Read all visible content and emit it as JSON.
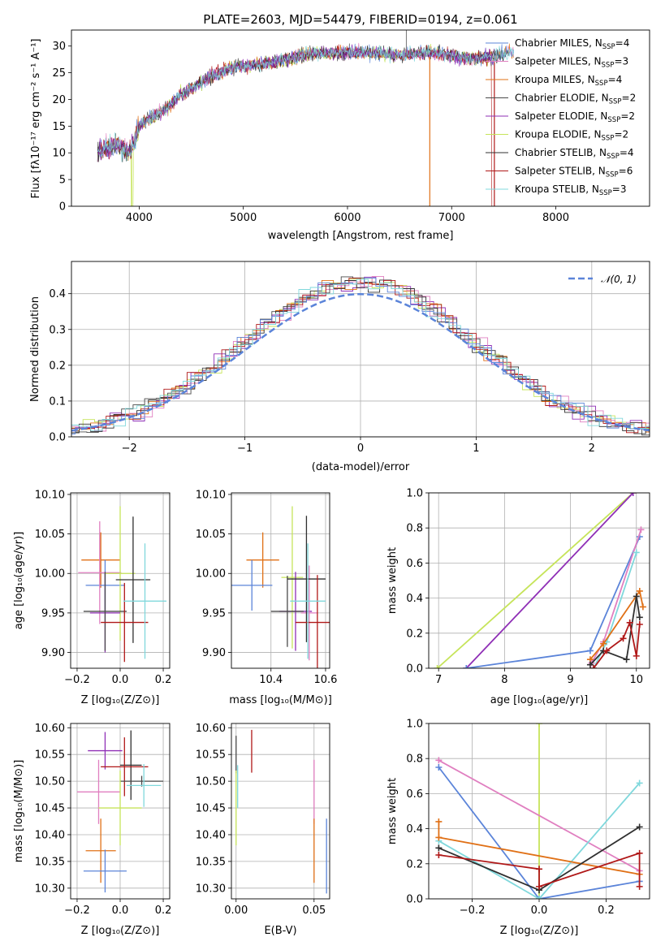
{
  "colors": {
    "chabrier_miles": "#5b84d9",
    "salpeter_miles": "#e07fc0",
    "kroupa_miles": "#e07016",
    "chabrier_elodie": "#4a4a4a",
    "salpeter_elodie": "#8f2fb6",
    "kroupa_elodie": "#c6e45a",
    "chabrier_stelib": "#303030",
    "salpeter_stelib": "#b01818",
    "kroupa_stelib": "#80d8dc",
    "grid": "#b0b0b0",
    "normal": "#5b84d9"
  },
  "chart_data": [
    {
      "id": "spectrum",
      "type": "line",
      "title": "PLATE=2603, MJD=54479, FIBERID=0194, z=0.061",
      "xlabel": "wavelength [Angstrom, rest frame]",
      "ylabel": "Flux [fλ10⁻¹⁷ erg cm⁻² s⁻¹ A⁻¹]",
      "xlim": [
        3350,
        8900
      ],
      "ylim": [
        0,
        33
      ],
      "xticks": [
        "4000",
        "5000",
        "6000",
        "7000",
        "8000"
      ],
      "yticks": [
        "0",
        "5",
        "10",
        "15",
        "20",
        "25",
        "30"
      ],
      "continuum": [
        [
          3600,
          10
        ],
        [
          3700,
          11
        ],
        [
          3800,
          11.5
        ],
        [
          3900,
          10
        ],
        [
          3950,
          12
        ],
        [
          4000,
          15
        ],
        [
          4100,
          16.5
        ],
        [
          4200,
          17.5
        ],
        [
          4300,
          19
        ],
        [
          4400,
          21
        ],
        [
          4500,
          22
        ],
        [
          4700,
          24.5
        ],
        [
          4900,
          26
        ],
        [
          5100,
          26.5
        ],
        [
          5300,
          27
        ],
        [
          5600,
          28.5
        ],
        [
          5900,
          28.8
        ],
        [
          6200,
          28.8
        ],
        [
          6500,
          28.3
        ],
        [
          6800,
          28.8
        ],
        [
          7000,
          28.2
        ],
        [
          7200,
          27.5
        ],
        [
          7400,
          28
        ],
        [
          7600,
          29
        ]
      ],
      "legend": [
        {
          "key": "chabrier_miles",
          "label": "Chabrier MILES, N",
          "sub": "SSP",
          "tail": "=4"
        },
        {
          "key": "salpeter_miles",
          "label": "Salpeter MILES, N",
          "sub": "SSP",
          "tail": "=3"
        },
        {
          "key": "kroupa_miles",
          "label": "Kroupa MILES, N",
          "sub": "SSP",
          "tail": "=4"
        },
        {
          "key": "chabrier_elodie",
          "label": "Chabrier ELODIE, N",
          "sub": "SSP",
          "tail": "=2"
        },
        {
          "key": "salpeter_elodie",
          "label": "Salpeter ELODIE, N",
          "sub": "SSP",
          "tail": "=2"
        },
        {
          "key": "kroupa_elodie",
          "label": "Kroupa ELODIE, N",
          "sub": "SSP",
          "tail": "=2"
        },
        {
          "key": "chabrier_stelib",
          "label": "Chabrier STELIB, N",
          "sub": "SSP",
          "tail": "=4"
        },
        {
          "key": "salpeter_stelib",
          "label": "Salpeter STELIB, N",
          "sub": "SSP",
          "tail": "=6"
        },
        {
          "key": "kroupa_stelib",
          "label": "Kroupa STELIB, N",
          "sub": "SSP",
          "tail": "=3"
        }
      ]
    },
    {
      "id": "residuals",
      "type": "line",
      "xlabel": "(data-model)/error",
      "ylabel": "Normed distribution",
      "xlim": [
        -2.5,
        2.5
      ],
      "ylim": [
        0,
        0.49
      ],
      "xticks": [
        "−2",
        "−1",
        "0",
        "1",
        "2"
      ],
      "yticks": [
        "0.0",
        "0.1",
        "0.2",
        "0.3",
        "0.4"
      ],
      "legend": "𝒩(0, 1)",
      "legend_position": "top-right",
      "bin_width": 0.1
    },
    {
      "id": "age_vs_Z",
      "type": "scatter",
      "xlabel": "Z [log₁₀(Z/Z⊙)]",
      "ylabel": "age [log₁₀(age/yr)]",
      "xlim": [
        -0.23,
        0.23
      ],
      "ylim": [
        9.88,
        10.102
      ],
      "xticks": [
        "−0.2",
        "0.0",
        "0.2"
      ],
      "yticks": [
        "9.90",
        "9.95",
        "10.00",
        "10.05",
        "10.10"
      ],
      "points": [
        {
          "key": "kroupa_miles",
          "x": -0.09,
          "xerr": 0.09,
          "y": 10.017,
          "yerr": 0.035
        },
        {
          "key": "chabrier_miles",
          "x": -0.07,
          "xerr": 0.09,
          "y": 9.985,
          "yerr": 0.032
        },
        {
          "key": "salpeter_miles",
          "x": -0.095,
          "xerr": 0.1,
          "y": 10.001,
          "yerr": 0.065
        },
        {
          "key": "kroupa_elodie",
          "x": 0.0,
          "xerr": 0.07,
          "y": 10.0,
          "yerr": 0.085
        },
        {
          "key": "salpeter_elodie",
          "x": -0.07,
          "xerr": 0.07,
          "y": 9.95,
          "yerr": 0.05
        },
        {
          "key": "chabrier_elodie",
          "x": -0.07,
          "xerr": 0.1,
          "y": 9.952,
          "yerr": 0.05
        },
        {
          "key": "chabrier_stelib",
          "x": 0.06,
          "xerr": 0.08,
          "y": 9.992,
          "yerr": 0.08
        },
        {
          "key": "salpeter_stelib",
          "x": 0.02,
          "xerr": 0.11,
          "y": 9.938,
          "yerr": 0.05
        },
        {
          "key": "kroupa_stelib",
          "x": 0.115,
          "xerr": 0.1,
          "y": 9.965,
          "yerr": 0.073
        }
      ]
    },
    {
      "id": "age_vs_mass",
      "type": "scatter",
      "xlabel": "mass [log₁₀(M/M⊙)]",
      "xlim": [
        10.255,
        10.615
      ],
      "ylim": [
        9.88,
        10.102
      ],
      "xticks": [
        "10.4",
        "10.6"
      ],
      "yticks": [
        "9.90",
        "9.95",
        "10.00",
        "10.05",
        "10.10"
      ],
      "points": [
        {
          "key": "kroupa_miles",
          "x": 10.37,
          "xerr": 0.06,
          "y": 10.017,
          "yerr": 0.035
        },
        {
          "key": "chabrier_miles",
          "x": 10.33,
          "xerr": 0.075,
          "y": 9.985,
          "yerr": 0.032
        },
        {
          "key": "kroupa_elodie",
          "x": 10.478,
          "xerr": 0.04,
          "y": 9.995,
          "yerr": 0.09
        },
        {
          "key": "salpeter_elodie",
          "x": 10.49,
          "xerr": 0.06,
          "y": 9.952,
          "yerr": 0.05
        },
        {
          "key": "chabrier_elodie",
          "x": 10.46,
          "xerr": 0.06,
          "y": 9.952,
          "yerr": 0.045
        },
        {
          "key": "salpeter_miles",
          "x": 10.54,
          "xerr": 0.03,
          "y": 9.95,
          "yerr": 0.06
        },
        {
          "key": "chabrier_stelib",
          "x": 10.53,
          "xerr": 0.07,
          "y": 9.993,
          "yerr": 0.08
        },
        {
          "key": "salpeter_stelib",
          "x": 10.57,
          "xerr": 0.08,
          "y": 9.938,
          "yerr": 0.06
        },
        {
          "key": "kroupa_stelib",
          "x": 10.535,
          "xerr": 0.065,
          "y": 9.965,
          "yerr": 0.073
        }
      ]
    },
    {
      "id": "mass_weight_vs_age",
      "type": "line",
      "xlabel": "age [log₁₀(age/yr)]",
      "ylabel": "mass weight",
      "xlim": [
        6.85,
        10.2
      ],
      "ylim": [
        0,
        1.0
      ],
      "xticks": [
        "7",
        "8",
        "9",
        "10"
      ],
      "yticks": [
        "0.0",
        "0.2",
        "0.4",
        "0.6",
        "0.8",
        "1.0"
      ],
      "series": [
        {
          "key": "kroupa_elodie",
          "points": [
            [
              6.98,
              0.0
            ],
            [
              9.95,
              1.0
            ]
          ]
        },
        {
          "key": "salpeter_elodie",
          "points": [
            [
              7.42,
              0.0
            ],
            [
              9.95,
              1.0
            ]
          ]
        },
        {
          "key": "chabrier_miles",
          "points": [
            [
              7.42,
              0.0
            ],
            [
              9.3,
              0.1
            ],
            [
              10.05,
              0.75
            ]
          ]
        },
        {
          "key": "salpeter_miles",
          "points": [
            [
              9.32,
              0.03
            ],
            [
              9.5,
              0.15
            ],
            [
              10.07,
              0.79
            ]
          ]
        },
        {
          "key": "kroupa_stelib",
          "points": [
            [
              9.35,
              0.0
            ],
            [
              9.55,
              0.15
            ],
            [
              10.0,
              0.66
            ]
          ]
        },
        {
          "key": "kroupa_miles",
          "points": [
            [
              9.3,
              0.05
            ],
            [
              9.5,
              0.14
            ],
            [
              10.05,
              0.44
            ],
            [
              10.1,
              0.35
            ]
          ]
        },
        {
          "key": "chabrier_stelib",
          "points": [
            [
              9.3,
              0.02
            ],
            [
              9.5,
              0.1
            ],
            [
              9.85,
              0.05
            ],
            [
              10.0,
              0.41
            ],
            [
              10.05,
              0.29
            ]
          ]
        },
        {
          "key": "salpeter_stelib",
          "points": [
            [
              9.35,
              0.0
            ],
            [
              9.55,
              0.1
            ],
            [
              9.8,
              0.17
            ],
            [
              9.9,
              0.26
            ],
            [
              10.0,
              0.07
            ],
            [
              10.05,
              0.25
            ]
          ]
        }
      ]
    },
    {
      "id": "mass_vs_Z",
      "type": "scatter",
      "xlabel": "Z [log₁₀(Z/Z⊙)]",
      "ylabel": "mass [log₁₀(M/M⊙)]",
      "xlim": [
        -0.23,
        0.23
      ],
      "ylim": [
        10.28,
        10.608
      ],
      "xticks": [
        "−0.2",
        "0.0",
        "0.2"
      ],
      "yticks": [
        "10.30",
        "10.35",
        "10.40",
        "10.45",
        "10.50",
        "10.55",
        "10.60"
      ],
      "points": [
        {
          "key": "salpeter_elodie",
          "x": -0.07,
          "xerr": 0.08,
          "y": 10.557,
          "yerr": 0.035
        },
        {
          "key": "chabrier_stelib",
          "x": 0.05,
          "xerr": 0.05,
          "y": 10.53,
          "yerr": 0.065
        },
        {
          "key": "salpeter_stelib",
          "x": 0.02,
          "xerr": 0.11,
          "y": 10.527,
          "yerr": 0.055
        },
        {
          "key": "chabrier_elodie",
          "x": 0.1,
          "xerr": 0.1,
          "y": 10.5,
          "yerr": 0.01
        },
        {
          "key": "kroupa_stelib",
          "x": 0.11,
          "xerr": 0.08,
          "y": 10.492,
          "yerr": 0.04
        },
        {
          "key": "salpeter_miles",
          "x": -0.1,
          "xerr": 0.1,
          "y": 10.48,
          "yerr": 0.06
        },
        {
          "key": "kroupa_elodie",
          "x": 0.0,
          "xerr": 0.1,
          "y": 10.45,
          "yerr": 0.07
        },
        {
          "key": "kroupa_miles",
          "x": -0.09,
          "xerr": 0.07,
          "y": 10.37,
          "yerr": 0.06
        },
        {
          "key": "chabrier_miles",
          "x": -0.07,
          "xerr": 0.1,
          "y": 10.332,
          "yerr": 0.04
        }
      ]
    },
    {
      "id": "mass_vs_ebv",
      "type": "scatter",
      "xlabel": "E(B-V)",
      "xlim": [
        -0.003,
        0.06
      ],
      "ylim": [
        10.28,
        10.608
      ],
      "xticks": [
        "0.00",
        "0.05"
      ],
      "yticks": [
        "10.30",
        "10.35",
        "10.40",
        "10.45",
        "10.50",
        "10.55",
        "10.60"
      ],
      "points": [
        {
          "key": "salpeter_stelib",
          "x": 0.01,
          "y": 10.556,
          "yerr": 0.04
        },
        {
          "key": "chabrier_elodie",
          "x": 0.0,
          "y": 10.55,
          "yerr": 0.035
        },
        {
          "key": "kroupa_stelib",
          "x": 0.001,
          "y": 10.49,
          "yerr": 0.04
        },
        {
          "key": "kroupa_elodie",
          "x": 0.0,
          "y": 10.45,
          "yerr": 0.07
        },
        {
          "key": "salpeter_miles",
          "x": 0.05,
          "y": 10.48,
          "yerr": 0.06
        },
        {
          "key": "kroupa_miles",
          "x": 0.05,
          "y": 10.37,
          "yerr": 0.06
        },
        {
          "key": "chabrier_miles",
          "x": 0.058,
          "y": 10.36,
          "yerr": 0.07
        }
      ]
    },
    {
      "id": "mass_weight_vs_Z",
      "type": "line",
      "xlabel": "Z [log₁₀(Z/Z⊙)]",
      "ylabel": "mass weight",
      "xlim": [
        -0.33,
        0.33
      ],
      "ylim": [
        0,
        1.0
      ],
      "xticks": [
        "−0.2",
        "0.0",
        "0.2"
      ],
      "yticks": [
        "0.0",
        "0.2",
        "0.4",
        "0.6",
        "0.8",
        "1.0"
      ],
      "series": [
        {
          "key": "kroupa_elodie",
          "points": [
            [
              0.0,
              1.0
            ],
            [
              0.0,
              0.0
            ]
          ]
        },
        {
          "key": "salpeter_miles",
          "points": [
            [
              -0.3,
              0.79
            ],
            [
              0.3,
              0.16
            ]
          ]
        },
        {
          "key": "chabrier_miles",
          "points": [
            [
              -0.3,
              0.75
            ],
            [
              0.0,
              0.0
            ],
            [
              0.3,
              0.1
            ]
          ]
        },
        {
          "key": "kroupa_stelib",
          "points": [
            [
              -0.3,
              0.33
            ],
            [
              0.0,
              0.0
            ],
            [
              0.3,
              0.66
            ]
          ]
        },
        {
          "key": "kroupa_miles",
          "points": [
            [
              -0.3,
              0.44
            ],
            [
              -0.3,
              0.35
            ],
            [
              0.3,
              0.14
            ]
          ]
        },
        {
          "key": "chabrier_stelib",
          "points": [
            [
              -0.3,
              0.29
            ],
            [
              0.0,
              0.05
            ],
            [
              0.3,
              0.41
            ]
          ]
        },
        {
          "key": "salpeter_stelib",
          "points": [
            [
              -0.3,
              0.25
            ],
            [
              0.0,
              0.17
            ],
            [
              0.0,
              0.07
            ],
            [
              0.3,
              0.26
            ],
            [
              0.3,
              0.07
            ]
          ]
        }
      ]
    }
  ]
}
